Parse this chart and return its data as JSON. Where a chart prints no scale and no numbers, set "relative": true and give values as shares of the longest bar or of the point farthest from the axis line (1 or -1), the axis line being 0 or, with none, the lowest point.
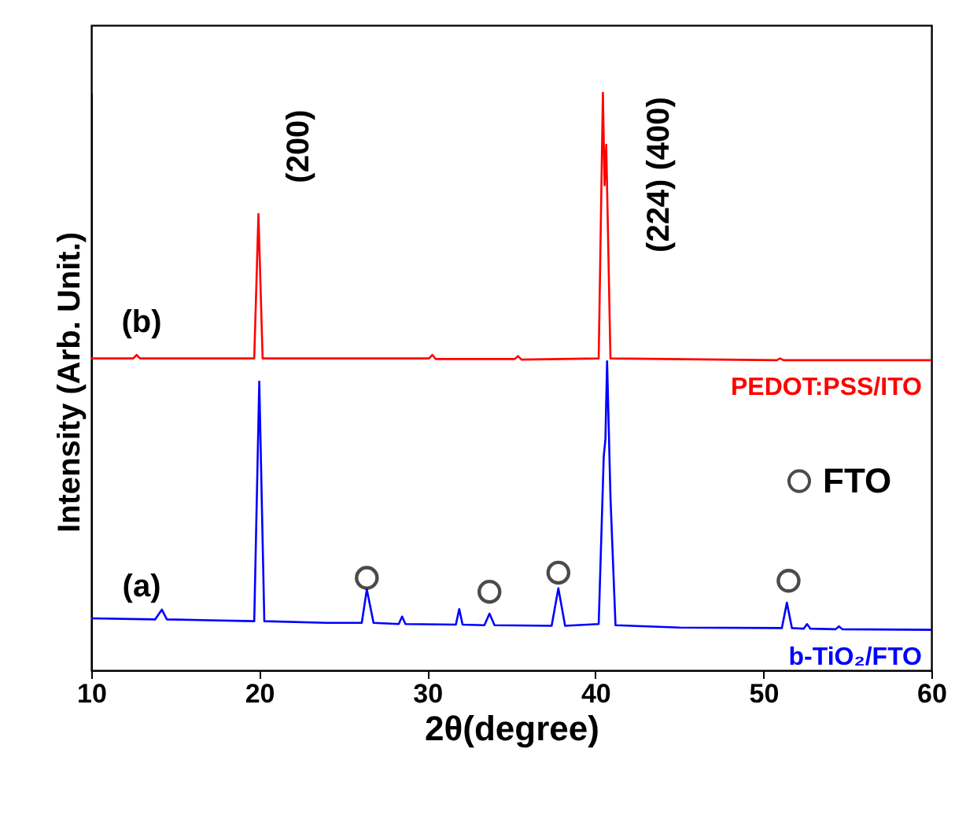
{
  "chart_data": {
    "type": "line",
    "xlabel": "2θ(degree)",
    "ylabel": "Intensity (Arb. Unit.)",
    "relative": true,
    "xlim": [
      10,
      60
    ],
    "xticks": [
      10,
      20,
      30,
      40,
      50,
      60
    ],
    "legend": "right",
    "series": [
      {
        "name": "PEDOT:PSS/ITO",
        "color": "#ff0000",
        "x": [
          10,
          12.5,
          12.7,
          12.9,
          19.7,
          19.95,
          20.2,
          30.1,
          30.3,
          30.5,
          35.2,
          35.4,
          35.6,
          40.2,
          40.45,
          40.55,
          40.65,
          40.9,
          50.8,
          51.0,
          51.2,
          60
        ],
        "values": [
          0.54,
          0.54,
          0.546,
          0.54,
          0.54,
          0.79,
          0.54,
          0.54,
          0.546,
          0.539,
          0.539,
          0.544,
          0.538,
          0.54,
          1.0,
          0.84,
          0.91,
          0.54,
          0.537,
          0.54,
          0.537,
          0.537
        ]
      },
      {
        "name": "b-TiO₂/FTO",
        "color": "#0000ff",
        "x": [
          10,
          13.8,
          14.2,
          14.5,
          19.7,
          20.0,
          20.3,
          24,
          26.1,
          26.4,
          26.8,
          28.3,
          28.5,
          28.7,
          31.7,
          31.9,
          32.1,
          33.4,
          33.7,
          34.0,
          37.4,
          37.8,
          38.2,
          40.2,
          40.5,
          40.6,
          40.7,
          40.9,
          41.2,
          45,
          51.1,
          51.4,
          51.7,
          52.4,
          52.6,
          52.8,
          54.3,
          54.5,
          54.7,
          60
        ],
        "values": [
          0.09,
          0.088,
          0.105,
          0.088,
          0.085,
          0.5,
          0.085,
          0.082,
          0.082,
          0.14,
          0.082,
          0.08,
          0.093,
          0.08,
          0.079,
          0.106,
          0.079,
          0.078,
          0.098,
          0.078,
          0.077,
          0.142,
          0.077,
          0.08,
          0.37,
          0.4,
          0.535,
          0.3,
          0.078,
          0.074,
          0.073,
          0.117,
          0.073,
          0.072,
          0.08,
          0.072,
          0.071,
          0.076,
          0.071,
          0.07
        ]
      },
      {
        "name": "FTO",
        "type": "scatter",
        "color": "#000000",
        "x": [
          26.4,
          33.7,
          37.8,
          51.5
        ],
        "values": [
          0.16,
          0.136,
          0.169,
          0.155
        ]
      }
    ],
    "annotations": [
      "(b)",
      "(a)",
      "(200)",
      "(224) (400)"
    ]
  }
}
